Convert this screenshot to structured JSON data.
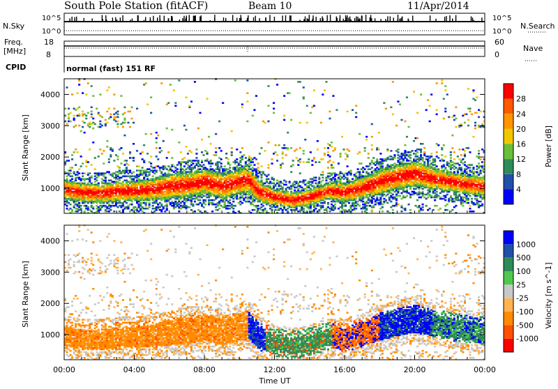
{
  "header": {
    "station_title": "South Pole Station (fitACF)",
    "beam_label": "Beam 10",
    "date": "11/Apr/2014"
  },
  "nsky_panel": {
    "left_label": "N.Sky",
    "right_label": "N.Search",
    "tick_top": "10^5",
    "tick_bottom": "10^0"
  },
  "freq_panel": {
    "left_label_line1": "Freq.",
    "left_label_line2": "[MHz]",
    "right_label": "Nave",
    "left_ticks": [
      "18",
      "8"
    ],
    "right_ticks": [
      "60",
      "0"
    ],
    "cpid_label": "CPID",
    "cpid_value": "normal (fast) 151 RF"
  },
  "colors": {
    "power_scale": [
      "#0000ff",
      "#1f4fa8",
      "#2e8b57",
      "#6abf3a",
      "#f0c800",
      "#ff9600",
      "#ff5a00",
      "#ff0000"
    ],
    "velocity_scale": [
      "#ff0000",
      "#ff5000",
      "#ff8c00",
      "#ffb450",
      "#c8c8c8",
      "#50c850",
      "#2e8b57",
      "#1f4fa8",
      "#0000ff"
    ]
  },
  "chart_data": [
    {
      "type": "heatmap",
      "name": "power-panel",
      "title": "",
      "xlabel": "Time UT",
      "ylabel": "Slant Range [km]",
      "xlim": [
        0,
        24
      ],
      "ylim": [
        200,
        4500
      ],
      "y_ticks": [
        1000,
        2000,
        3000,
        4000
      ],
      "colorbar": {
        "label": "Power [dB]",
        "ticks": [
          "4",
          "8",
          "12",
          "16",
          "20",
          "24",
          "28"
        ],
        "range": [
          0,
          32
        ]
      },
      "main_band": [
        [
          0,
          950,
          300
        ],
        [
          1,
          850,
          300
        ],
        [
          2,
          830,
          300
        ],
        [
          3,
          880,
          320
        ],
        [
          4,
          900,
          320
        ],
        [
          5,
          950,
          350
        ],
        [
          6,
          1050,
          400
        ],
        [
          7,
          1100,
          400
        ],
        [
          8,
          1200,
          400
        ],
        [
          9,
          1050,
          400
        ],
        [
          10,
          1200,
          400
        ],
        [
          10.5,
          1250,
          400
        ],
        [
          11,
          900,
          350
        ],
        [
          12,
          700,
          250
        ],
        [
          13,
          600,
          250
        ],
        [
          14,
          700,
          250
        ],
        [
          15,
          900,
          250
        ],
        [
          16,
          850,
          300
        ],
        [
          17,
          1000,
          350
        ],
        [
          18,
          1200,
          400
        ],
        [
          19,
          1350,
          400
        ],
        [
          20,
          1450,
          400
        ],
        [
          21,
          1300,
          350
        ],
        [
          22,
          1200,
          300
        ],
        [
          23,
          1100,
          300
        ],
        [
          24,
          1050,
          300
        ]
      ]
    },
    {
      "type": "heatmap",
      "name": "velocity-panel",
      "title": "",
      "xlabel": "Time UT",
      "ylabel": "Slant Range [km]",
      "xlim": [
        0,
        24
      ],
      "ylim": [
        200,
        4500
      ],
      "y_ticks": [
        1000,
        2000,
        3000,
        4000
      ],
      "x_ticks": [
        "00:00",
        "04:00",
        "08:00",
        "12:00",
        "16:00",
        "20:00",
        "00:00"
      ],
      "colorbar": {
        "label": "Velocity [m s^-1]",
        "ticks": [
          "1000",
          "500",
          "100",
          "25",
          "-25",
          "-100",
          "-500",
          "-1000"
        ]
      }
    }
  ]
}
